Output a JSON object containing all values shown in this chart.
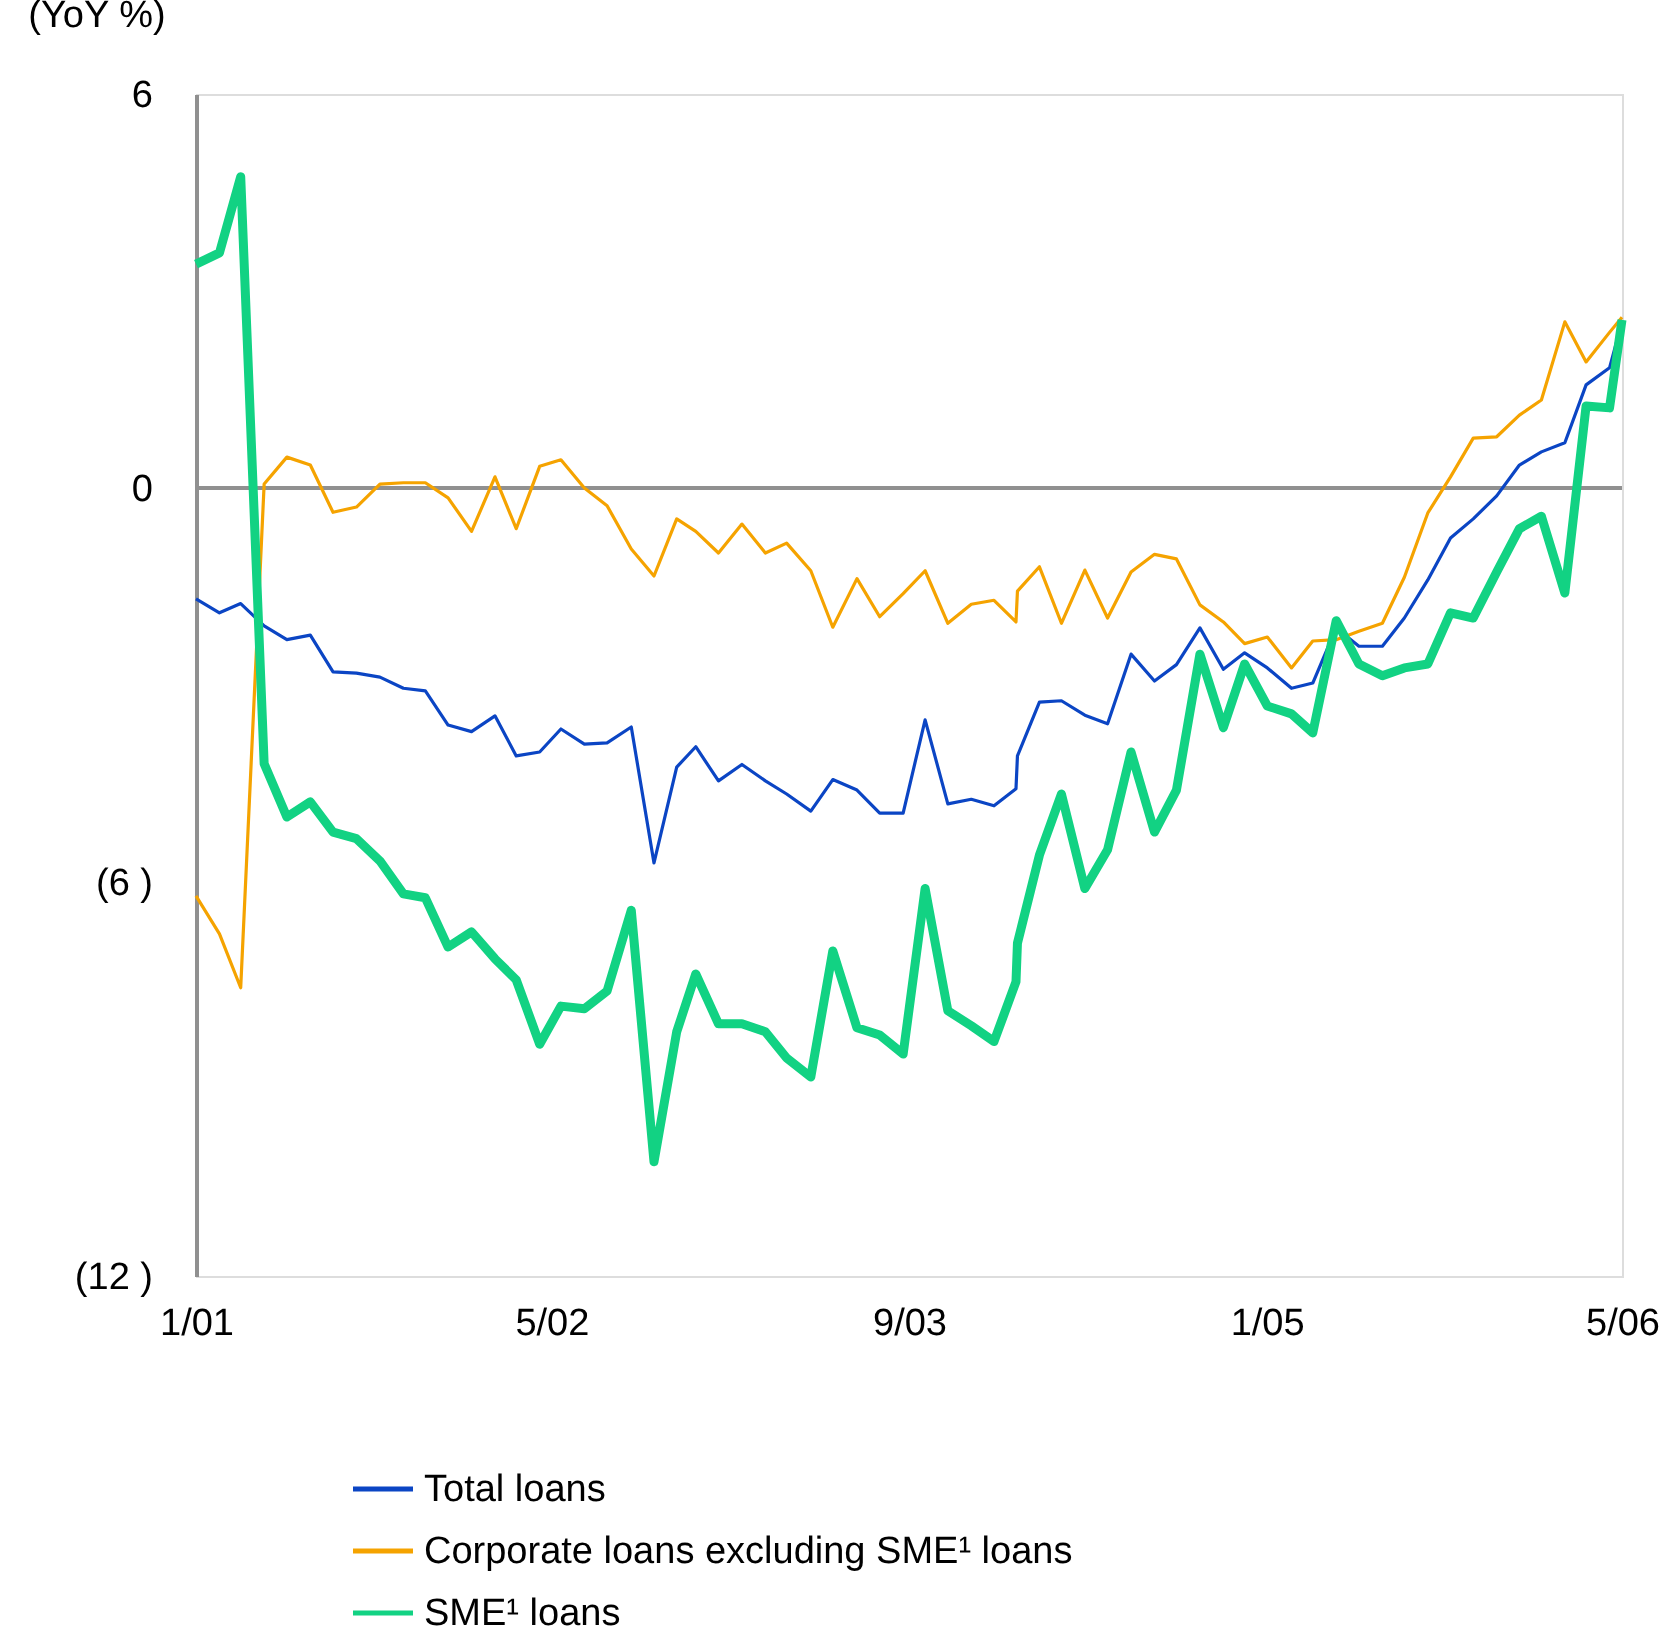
{
  "chart_data": {
    "type": "line",
    "ylabel": "(YoY %)",
    "x": [
      "2001-01-01",
      "2001-02-02",
      "2001-03-03",
      "2001-04-04",
      "2001-05-05",
      "2001-06-06",
      "2001-07-07",
      "2001-08-08",
      "2001-09-09",
      "2001-10-11",
      "2001-11-10",
      "2001-12-11",
      "2002-01-12",
      "2002-02-13",
      "2002-03-14",
      "2002-04-15",
      "2002-05-14",
      "2002-06-15",
      "2002-07-16",
      "2002-08-18",
      "2002-09-18",
      "2002-10-19",
      "2002-11-14",
      "2002-12-15",
      "2003-01-16",
      "2003-02-17",
      "2003-03-18",
      "2003-04-20",
      "2003-05-20",
      "2003-06-22",
      "2003-07-23",
      "2003-08-24",
      "2003-09-23",
      "2003-10-24",
      "2003-11-25",
      "2003-12-26",
      "2004-01-25",
      "2004-01-27",
      "2004-02-26",
      "2004-03-27",
      "2004-04-28",
      "2004-05-29",
      "2004-06-30",
      "2004-08-01",
      "2004-08-31",
      "2004-10-02",
      "2004-11-03",
      "2004-12-02",
      "2005-01-02",
      "2005-02-04",
      "2005-03-05",
      "2005-04-06",
      "2005-05-07",
      "2005-06-08",
      "2005-07-08",
      "2005-08-09",
      "2005-09-09",
      "2005-10-10",
      "2005-11-11",
      "2005-12-12",
      "2006-01-11",
      "2006-02-12",
      "2006-03-13",
      "2006-04-14",
      "2006-05-01"
    ],
    "series": [
      {
        "name": "Total loans",
        "color": "#0b45c4",
        "values": [
          -1.69,
          -1.9,
          -1.76,
          -2.1,
          -2.31,
          -2.24,
          -2.8,
          -2.82,
          -2.88,
          -3.05,
          -3.09,
          -3.61,
          -3.71,
          -3.47,
          -4.08,
          -4.02,
          -3.67,
          -3.9,
          -3.88,
          -3.64,
          -5.71,
          -4.25,
          -3.94,
          -4.46,
          -4.21,
          -4.46,
          -4.66,
          -4.92,
          -4.44,
          -4.6,
          -4.95,
          -4.95,
          -3.53,
          -4.81,
          -4.74,
          -4.84,
          -4.58,
          -4.08,
          -3.26,
          -3.24,
          -3.46,
          -3.59,
          -2.53,
          -2.94,
          -2.69,
          -2.13,
          -2.76,
          -2.51,
          -2.74,
          -3.05,
          -2.97,
          -2.13,
          -2.41,
          -2.41,
          -1.98,
          -1.4,
          -0.76,
          -0.47,
          -0.12,
          0.35,
          0.55,
          0.69,
          1.57,
          1.83,
          2.53
        ]
      },
      {
        "name": "Corporate loans excluding SME¹ loans",
        "color": "#f5a300",
        "values": [
          -6.21,
          -6.79,
          -7.61,
          0.06,
          0.47,
          0.35,
          -0.37,
          -0.29,
          0.06,
          0.08,
          0.08,
          -0.15,
          -0.66,
          0.17,
          -0.62,
          0.33,
          0.43,
          0,
          -0.27,
          -0.93,
          -1.34,
          -0.47,
          -0.66,
          -0.99,
          -0.55,
          -0.99,
          -0.84,
          -1.26,
          -2.12,
          -1.38,
          -1.96,
          -1.61,
          -1.26,
          -2.06,
          -1.77,
          -1.71,
          -2.04,
          -1.57,
          -1.2,
          -2.06,
          -1.25,
          -1.98,
          -1.28,
          -1.01,
          -1.08,
          -1.78,
          -2.04,
          -2.37,
          -2.27,
          -2.74,
          -2.33,
          -2.31,
          -2.18,
          -2.06,
          -1.36,
          -0.38,
          0.17,
          0.76,
          0.78,
          1.11,
          1.34,
          2.53,
          1.92,
          2.37,
          2.6
        ]
      },
      {
        "name": "SME¹ loans",
        "color": "#12d283",
        "values": [
          3.41,
          3.58,
          4.74,
          -4.2,
          -5.01,
          -4.78,
          -5.24,
          -5.34,
          -5.68,
          -6.18,
          -6.24,
          -6.99,
          -6.76,
          -7.17,
          -7.49,
          -8.47,
          -7.89,
          -7.93,
          -7.66,
          -6.43,
          -10.26,
          -8.28,
          -7.4,
          -8.16,
          -8.16,
          -8.28,
          -8.68,
          -8.97,
          -7.05,
          -8.22,
          -8.33,
          -8.62,
          -6.1,
          -7.96,
          -8.19,
          -8.43,
          -7.52,
          -6.93,
          -5.59,
          -4.66,
          -6.1,
          -5.51,
          -4.02,
          -5.24,
          -4.6,
          -2.53,
          -3.65,
          -2.68,
          -3.32,
          -3.44,
          -3.73,
          -2.02,
          -2.68,
          -2.86,
          -2.74,
          -2.68,
          -1.9,
          -1.98,
          -1.28,
          -0.62,
          -0.43,
          -1.6,
          1.25,
          1.22,
          2.56
        ]
      }
    ],
    "xlim": [
      "2001-01-01",
      "2006-05-01"
    ],
    "xticks": [
      {
        "value": "2001-01-01",
        "label": "1/01"
      },
      {
        "value": "2002-05-01",
        "label": "5/02"
      },
      {
        "value": "2003-09-01",
        "label": "9/03"
      },
      {
        "value": "2005-01-01",
        "label": "1/05"
      },
      {
        "value": "2006-05-01",
        "label": "5/06"
      }
    ],
    "ylim": [
      -12,
      6
    ],
    "yticks": [
      6,
      0,
      {
        "value": -6,
        "label": "(6 )"
      },
      {
        "value": -12,
        "label": "(12 )"
      }
    ],
    "ref_lines": [
      {
        "axis": "y",
        "value": 0,
        "label": null,
        "color": "#909090"
      }
    ],
    "grid": false,
    "legend": "bottom",
    "marker": "none",
    "line_style": "solid"
  }
}
